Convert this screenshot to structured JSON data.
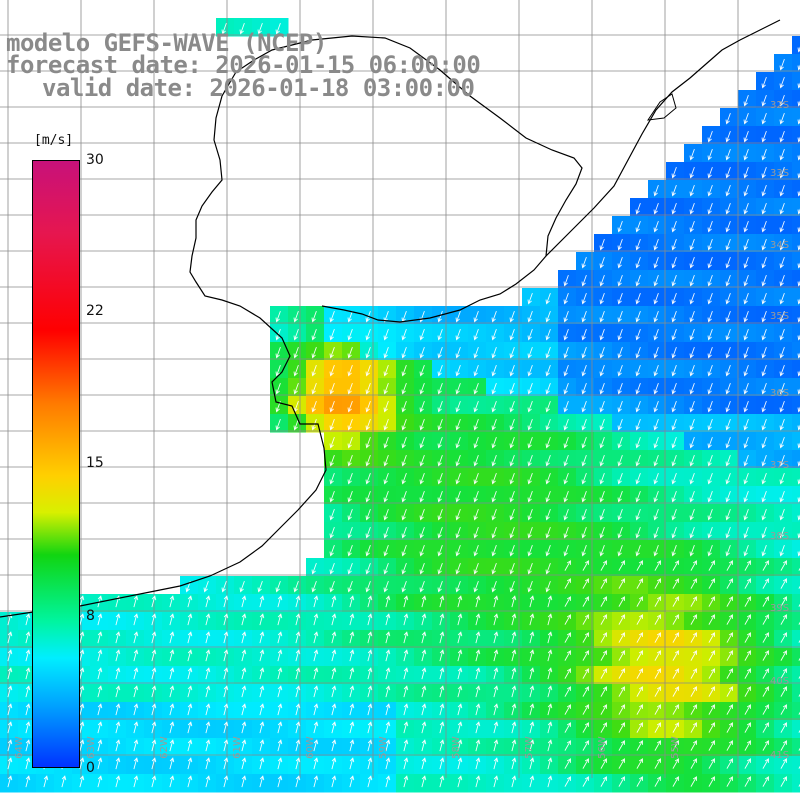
{
  "title": {
    "line1": "modelo GEFS-WAVE (NCEP)",
    "line2": "forecast date: 2026-01-15 06:00:00",
    "line3": "valid date: 2026-01-18 03:00:00"
  },
  "colorbar": {
    "unit": "[m/s]",
    "ticks": [
      "30",
      "22",
      "15",
      "8",
      "0"
    ],
    "colors": [
      "#c8117a",
      "#ff0000",
      "#ff7a00",
      "#ffd000",
      "#11d511",
      "#00eeff",
      "#0033ff"
    ]
  },
  "lat_labels": [
    "32S",
    "33S",
    "34S",
    "35S",
    "36S",
    "37S",
    "38S",
    "39S",
    "40S",
    "41S"
  ],
  "lon_labels": [
    "64W",
    "63W",
    "62W",
    "61W",
    "60W",
    "59W",
    "58W",
    "57W",
    "56W",
    "55W"
  ],
  "field": {
    "variable": "wind speed",
    "range": [
      0,
      30
    ],
    "pattern": "calm coastal strip, strong jet over estuary mouth, high-wind core south-east"
  }
}
